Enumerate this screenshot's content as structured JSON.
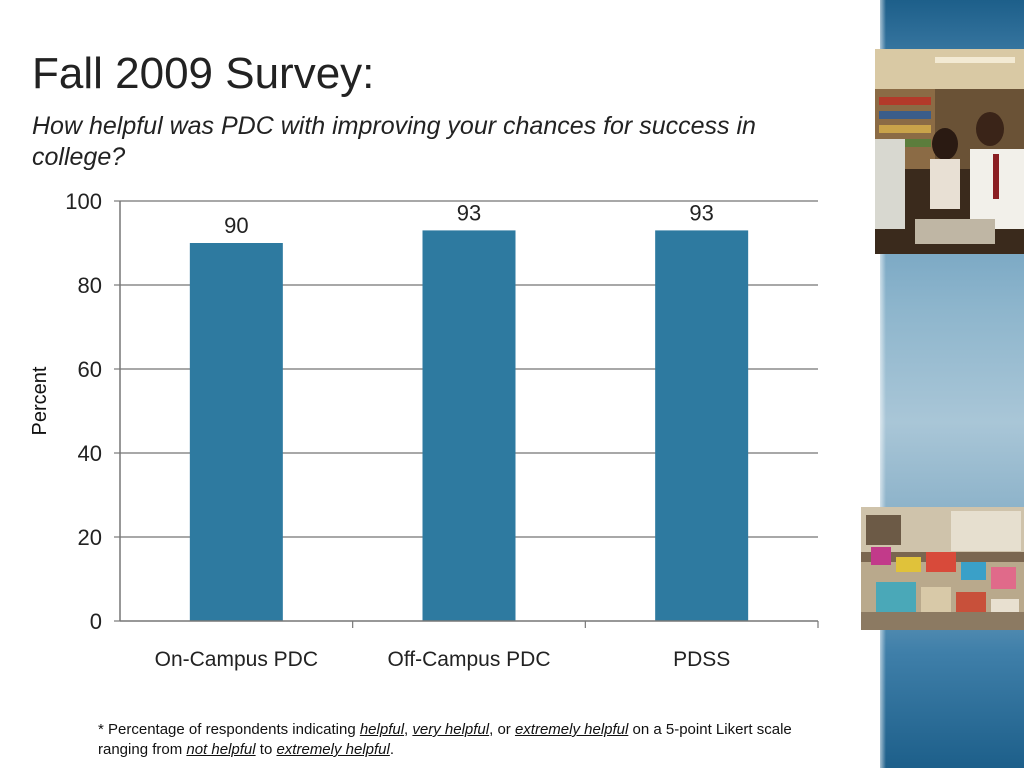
{
  "slide": {
    "title": "Fall 2009 Survey:",
    "subtitle": "How helpful was PDC with improving your chances for success in college?"
  },
  "chart_data": {
    "type": "bar",
    "categories": [
      "On-Campus PDC",
      "Off-Campus PDC",
      "PDSS"
    ],
    "values": [
      90,
      93,
      93
    ],
    "data_labels": [
      "90",
      "93",
      "93"
    ],
    "ylabel": "Percent",
    "ylim": [
      0,
      100
    ],
    "yticks": [
      0,
      20,
      40,
      60,
      80,
      100
    ],
    "grid": true,
    "legend": "none",
    "bar_color": "#2e7aa0"
  },
  "footnote": {
    "p1": "* Percentage of respondents indicating ",
    "e1": "helpful",
    "p2": ", ",
    "e2": "very helpful",
    "p3": ", or ",
    "e3": "extremely helpful",
    "p4": " on a 5-point Likert scale ranging from ",
    "e4": "not helpful",
    "p5": " to ",
    "e5": "extremely helpful",
    "p6": "."
  },
  "decor": {
    "accent_color": "#2e7aa0",
    "photo1_icon": "classroom-photo",
    "photo2_icon": "workshop-table-photo"
  }
}
